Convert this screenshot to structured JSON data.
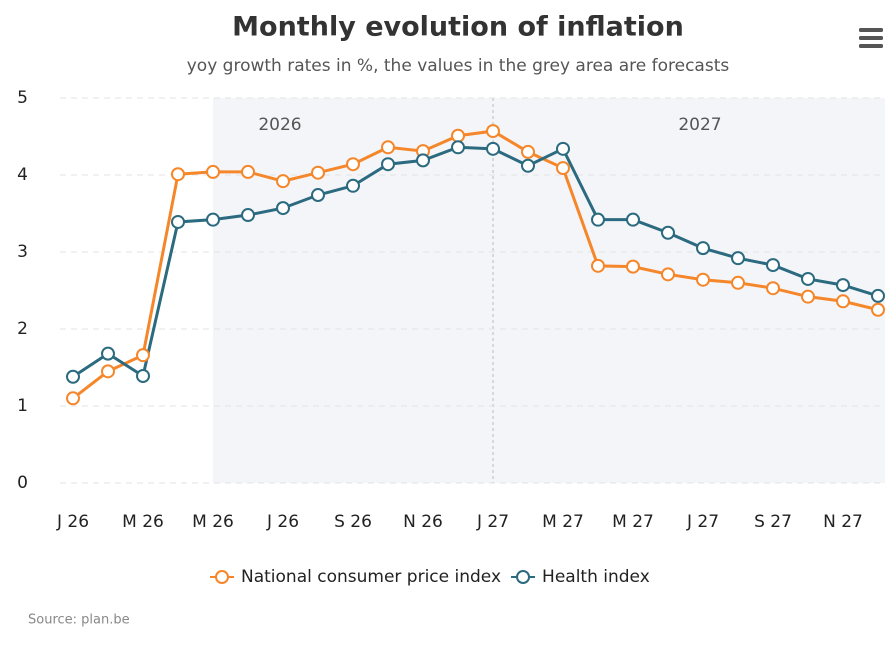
{
  "chart_data": {
    "type": "line",
    "title": "Monthly evolution of inflation",
    "subtitle": "yoy growth rates in %, the values in the grey area are forecasts",
    "source": "Source: plan.be",
    "annotations": [
      "2026",
      "2027"
    ],
    "categories": [
      "J 26",
      null,
      "M 26",
      null,
      "M 26",
      null,
      "J 26",
      null,
      "S 26",
      null,
      "N 26",
      null,
      "J 27",
      null,
      "M 27",
      null,
      "M 27",
      null,
      "J 27",
      null,
      "S 27",
      null,
      "N 27",
      null
    ],
    "series": [
      {
        "name": "National consumer price index",
        "color": "#f5872a",
        "values": [
          1.1,
          1.45,
          1.66,
          4.01,
          4.04,
          4.04,
          3.92,
          4.03,
          4.14,
          4.36,
          4.31,
          4.51,
          4.57,
          4.3,
          4.09,
          2.82,
          2.81,
          2.71,
          2.64,
          2.6,
          2.53,
          2.42,
          2.36,
          2.25
        ]
      },
      {
        "name": "Health index",
        "color": "#2b6a7f",
        "values": [
          1.38,
          1.68,
          1.39,
          3.39,
          3.42,
          3.48,
          3.57,
          3.74,
          3.86,
          4.14,
          4.19,
          4.36,
          4.34,
          4.12,
          4.34,
          3.42,
          3.42,
          3.25,
          3.05,
          2.92,
          2.83,
          2.65,
          2.57,
          2.43
        ]
      }
    ],
    "ylim": [
      0,
      5
    ],
    "yticks": [
      0,
      1,
      2,
      3,
      4,
      5
    ],
    "grid": true,
    "legend": "bottom"
  }
}
